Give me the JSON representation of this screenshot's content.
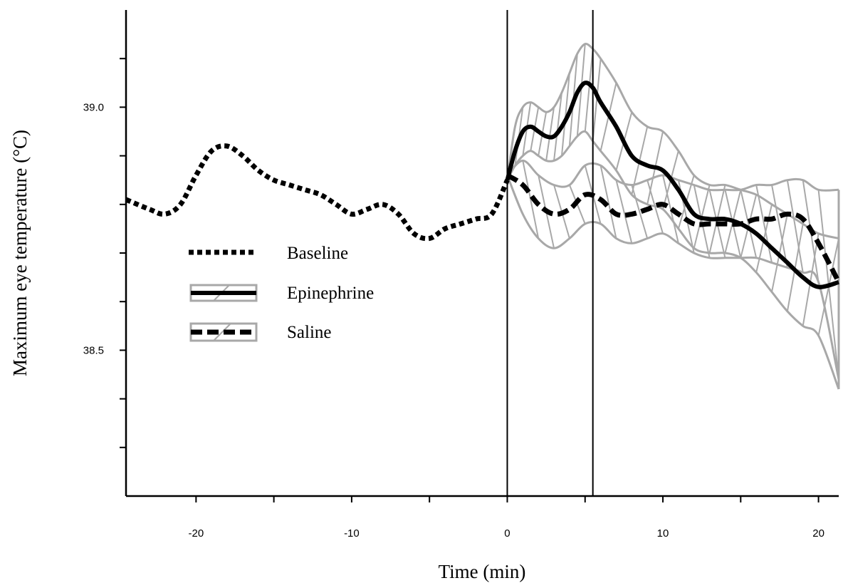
{
  "chart_data": {
    "type": "line",
    "title": "",
    "xlabel": "Time (min)",
    "ylabel": "Maximum eye temperature (°C)",
    "xlim": [
      -24.5,
      21.3
    ],
    "ylim": [
      38.2,
      39.2
    ],
    "x_ticks": [
      -20,
      -10,
      0,
      10,
      20
    ],
    "x_tick_labels": [
      "-20",
      "-10",
      "0",
      "10",
      "20"
    ],
    "x_minor_ticks": [
      -15,
      -5,
      5,
      15
    ],
    "y_ticks": [
      38.5,
      39.0
    ],
    "y_tick_labels": [
      "38.5",
      "39.0"
    ],
    "y_minor_ticks": [
      38.3,
      38.4,
      38.6,
      38.7,
      38.8,
      38.9,
      39.1
    ],
    "vertical_lines": [
      0,
      5.5
    ],
    "grid": false,
    "legend_position": "left",
    "colors": {
      "line": "#000000",
      "band": "#a8a8a8",
      "axis": "#000000"
    },
    "series": [
      {
        "name": "Baseline",
        "style": "dotted",
        "x": [
          -24.5,
          -23,
          -22,
          -21,
          -20,
          -19,
          -18,
          -17,
          -16,
          -15,
          -14,
          -13,
          -12,
          -11,
          -10,
          -9,
          -8,
          -7,
          -6,
          -5,
          -4,
          -3,
          -2,
          -1,
          0
        ],
        "y": [
          38.81,
          38.79,
          38.78,
          38.8,
          38.86,
          38.91,
          38.92,
          38.9,
          38.87,
          38.85,
          38.84,
          38.83,
          38.82,
          38.8,
          38.78,
          38.79,
          38.8,
          38.78,
          38.74,
          38.73,
          38.75,
          38.76,
          38.77,
          38.78,
          38.85
        ]
      },
      {
        "name": "Epinephrine",
        "style": "solid",
        "x": [
          0,
          0.5,
          1,
          1.5,
          2,
          2.5,
          3,
          3.5,
          4,
          4.5,
          5,
          5.5,
          6,
          7,
          8,
          9,
          10,
          11,
          12,
          13,
          14,
          15,
          16,
          17,
          18,
          19,
          20,
          21.3
        ],
        "y": [
          38.85,
          38.91,
          38.95,
          38.96,
          38.95,
          38.94,
          38.94,
          38.96,
          38.99,
          39.03,
          39.05,
          39.04,
          39.01,
          38.96,
          38.9,
          38.88,
          38.87,
          38.83,
          38.78,
          38.77,
          38.77,
          38.76,
          38.74,
          38.71,
          38.68,
          38.65,
          38.63,
          38.64
        ],
        "band_upper": [
          38.85,
          38.96,
          39.0,
          39.01,
          39.0,
          38.99,
          39.0,
          39.03,
          39.07,
          39.11,
          39.13,
          39.12,
          39.1,
          39.05,
          38.99,
          38.96,
          38.95,
          38.91,
          38.86,
          38.84,
          38.84,
          38.83,
          38.82,
          38.8,
          38.78,
          38.76,
          38.74,
          38.73
        ],
        "band_lower": [
          38.85,
          38.88,
          38.9,
          38.91,
          38.9,
          38.89,
          38.89,
          38.9,
          38.92,
          38.94,
          38.95,
          38.93,
          38.91,
          38.87,
          38.82,
          38.8,
          38.79,
          38.75,
          38.71,
          38.7,
          38.7,
          38.69,
          38.66,
          38.62,
          38.58,
          38.55,
          38.53,
          38.42
        ]
      },
      {
        "name": "Saline",
        "style": "dashed",
        "x": [
          0,
          1,
          2,
          3,
          4,
          5,
          6,
          7,
          8,
          9,
          10,
          11,
          12,
          13,
          14,
          15,
          16,
          17,
          18,
          19,
          20,
          21.3
        ],
        "y": [
          38.86,
          38.84,
          38.8,
          38.78,
          38.79,
          38.82,
          38.81,
          38.78,
          38.78,
          38.79,
          38.8,
          38.78,
          38.76,
          38.76,
          38.76,
          38.76,
          38.77,
          38.77,
          38.78,
          38.77,
          38.72,
          38.64
        ],
        "band_upper": [
          38.86,
          38.89,
          38.86,
          38.84,
          38.84,
          38.88,
          38.88,
          38.85,
          38.84,
          38.85,
          38.86,
          38.85,
          38.84,
          38.83,
          38.83,
          38.83,
          38.84,
          38.84,
          38.85,
          38.85,
          38.83,
          38.83
        ],
        "band_lower": [
          38.86,
          38.78,
          38.73,
          38.71,
          38.73,
          38.76,
          38.76,
          38.73,
          38.72,
          38.73,
          38.74,
          38.72,
          38.7,
          38.69,
          38.69,
          38.69,
          38.69,
          38.68,
          38.67,
          38.66,
          38.64,
          38.44
        ]
      }
    ]
  }
}
